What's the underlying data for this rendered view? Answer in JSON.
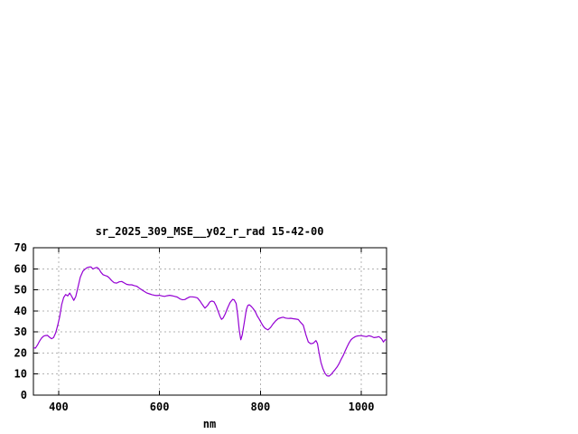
{
  "window": {
    "background": "#ffffff"
  },
  "chart_data": {
    "type": "line",
    "title": "sr_2025_309_MSE__y02_r_rad 15-42-00",
    "xlabel": "nm",
    "ylabel": "",
    "xlim": [
      350,
      1050
    ],
    "ylim": [
      0,
      70
    ],
    "xticks": [
      400,
      600,
      800,
      1000
    ],
    "yticks": [
      0,
      10,
      20,
      30,
      40,
      50,
      60,
      70
    ],
    "grid": true,
    "legend": "none",
    "colors": {
      "line": "#9400d3",
      "grid": "#b3b3b3",
      "axis": "#000000",
      "background": "#ffffff"
    },
    "series": [
      {
        "name": "sr_2025_309_MSE__y02_r_rad",
        "points": [
          [
            350,
            22.6
          ],
          [
            354,
            22.3
          ],
          [
            358,
            23.8
          ],
          [
            362,
            25.6
          ],
          [
            366,
            27.0
          ],
          [
            370,
            28.0
          ],
          [
            374,
            28.3
          ],
          [
            378,
            28.4
          ],
          [
            382,
            27.5
          ],
          [
            386,
            26.8
          ],
          [
            390,
            27.3
          ],
          [
            394,
            29.5
          ],
          [
            398,
            33.0
          ],
          [
            402,
            37.0
          ],
          [
            406,
            43.0
          ],
          [
            410,
            46.4
          ],
          [
            414,
            47.8
          ],
          [
            418,
            47.1
          ],
          [
            422,
            48.5
          ],
          [
            426,
            46.8
          ],
          [
            430,
            45.0
          ],
          [
            434,
            46.8
          ],
          [
            438,
            51.0
          ],
          [
            443,
            56.0
          ],
          [
            448,
            58.8
          ],
          [
            452,
            59.8
          ],
          [
            456,
            60.5
          ],
          [
            460,
            60.8
          ],
          [
            464,
            60.9
          ],
          [
            468,
            59.9
          ],
          [
            472,
            60.4
          ],
          [
            476,
            60.7
          ],
          [
            480,
            59.9
          ],
          [
            484,
            58.3
          ],
          [
            488,
            57.2
          ],
          [
            492,
            56.8
          ],
          [
            496,
            56.5
          ],
          [
            500,
            55.8
          ],
          [
            505,
            54.4
          ],
          [
            510,
            53.4
          ],
          [
            515,
            53.2
          ],
          [
            520,
            53.8
          ],
          [
            525,
            54.0
          ],
          [
            530,
            53.3
          ],
          [
            535,
            52.6
          ],
          [
            540,
            52.4
          ],
          [
            545,
            52.4
          ],
          [
            550,
            52.0
          ],
          [
            555,
            51.7
          ],
          [
            560,
            50.8
          ],
          [
            565,
            50.0
          ],
          [
            570,
            49.2
          ],
          [
            575,
            48.5
          ],
          [
            580,
            48.1
          ],
          [
            585,
            47.7
          ],
          [
            590,
            47.4
          ],
          [
            595,
            47.3
          ],
          [
            600,
            47.4
          ],
          [
            605,
            47.1
          ],
          [
            610,
            46.9
          ],
          [
            615,
            47.2
          ],
          [
            620,
            47.4
          ],
          [
            625,
            47.2
          ],
          [
            630,
            46.9
          ],
          [
            635,
            46.6
          ],
          [
            640,
            45.8
          ],
          [
            645,
            45.3
          ],
          [
            650,
            45.4
          ],
          [
            655,
            46.1
          ],
          [
            660,
            46.7
          ],
          [
            665,
            46.7
          ],
          [
            670,
            46.5
          ],
          [
            675,
            46.2
          ],
          [
            680,
            44.8
          ],
          [
            685,
            43.0
          ],
          [
            690,
            41.3
          ],
          [
            695,
            42.5
          ],
          [
            700,
            44.3
          ],
          [
            704,
            44.7
          ],
          [
            708,
            44.3
          ],
          [
            712,
            42.5
          ],
          [
            716,
            40.0
          ],
          [
            720,
            37.3
          ],
          [
            723,
            36.0
          ],
          [
            726,
            36.6
          ],
          [
            730,
            38.5
          ],
          [
            735,
            41.5
          ],
          [
            740,
            44.0
          ],
          [
            745,
            45.5
          ],
          [
            748,
            45.2
          ],
          [
            752,
            43.5
          ],
          [
            755,
            38.0
          ],
          [
            758,
            31.0
          ],
          [
            761,
            26.3
          ],
          [
            764,
            28.5
          ],
          [
            768,
            34.5
          ],
          [
            772,
            40.5
          ],
          [
            775,
            42.6
          ],
          [
            778,
            42.9
          ],
          [
            782,
            42.1
          ],
          [
            786,
            41.0
          ],
          [
            790,
            39.5
          ],
          [
            794,
            37.5
          ],
          [
            798,
            36.0
          ],
          [
            802,
            34.2
          ],
          [
            806,
            32.6
          ],
          [
            810,
            31.6
          ],
          [
            815,
            31.0
          ],
          [
            820,
            32.1
          ],
          [
            825,
            33.8
          ],
          [
            830,
            35.2
          ],
          [
            835,
            36.3
          ],
          [
            840,
            36.7
          ],
          [
            845,
            37.0
          ],
          [
            850,
            36.6
          ],
          [
            855,
            36.4
          ],
          [
            860,
            36.5
          ],
          [
            865,
            36.3
          ],
          [
            870,
            36.1
          ],
          [
            875,
            35.9
          ],
          [
            880,
            34.5
          ],
          [
            885,
            33.2
          ],
          [
            890,
            28.8
          ],
          [
            895,
            25.2
          ],
          [
            900,
            24.4
          ],
          [
            905,
            24.7
          ],
          [
            910,
            25.9
          ],
          [
            913,
            24.5
          ],
          [
            916,
            20.2
          ],
          [
            920,
            15.5
          ],
          [
            924,
            12.5
          ],
          [
            928,
            10.3
          ],
          [
            932,
            9.2
          ],
          [
            936,
            9.0
          ],
          [
            940,
            9.8
          ],
          [
            944,
            11.0
          ],
          [
            948,
            12.1
          ],
          [
            952,
            13.4
          ],
          [
            956,
            15.0
          ],
          [
            960,
            17.0
          ],
          [
            964,
            18.8
          ],
          [
            968,
            21.0
          ],
          [
            972,
            23.0
          ],
          [
            976,
            25.0
          ],
          [
            980,
            26.4
          ],
          [
            984,
            27.2
          ],
          [
            988,
            27.8
          ],
          [
            992,
            28.1
          ],
          [
            996,
            28.2
          ],
          [
            1000,
            28.2
          ],
          [
            1005,
            28.0
          ],
          [
            1010,
            27.8
          ],
          [
            1015,
            28.2
          ],
          [
            1020,
            27.9
          ],
          [
            1025,
            27.3
          ],
          [
            1030,
            27.5
          ],
          [
            1035,
            27.8
          ],
          [
            1040,
            26.8
          ],
          [
            1044,
            25.2
          ],
          [
            1047,
            26.3
          ],
          [
            1050,
            26.2
          ]
        ]
      }
    ]
  }
}
